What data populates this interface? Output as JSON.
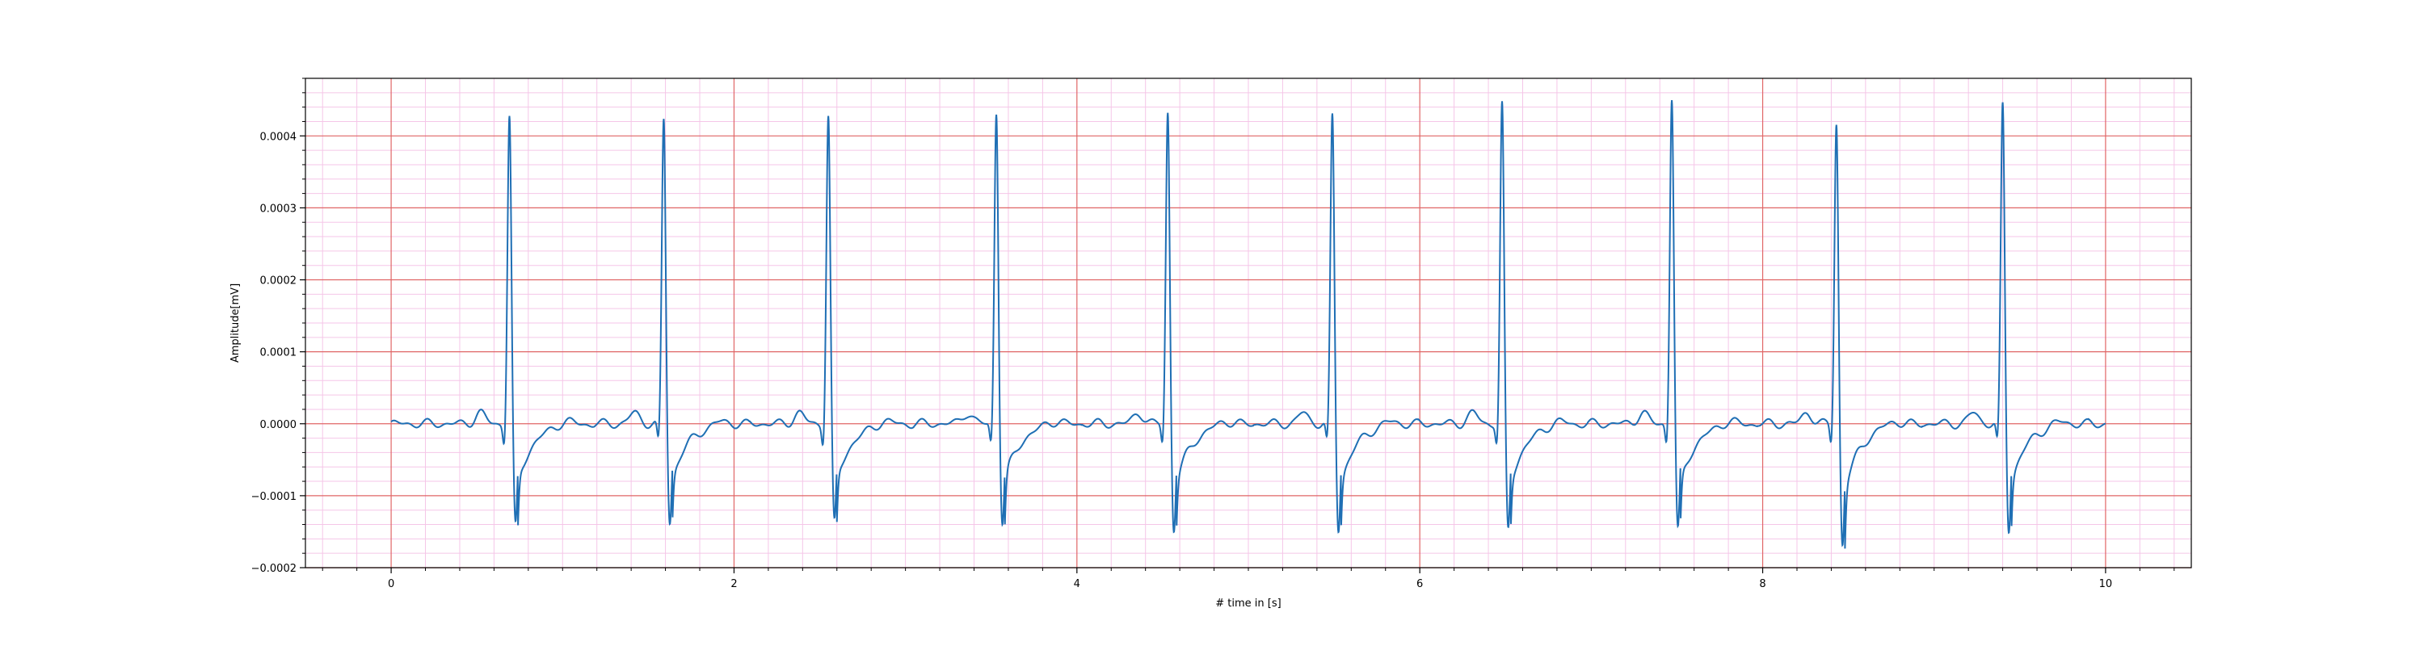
{
  "chart_data": {
    "type": "line",
    "title": "",
    "xlabel": "# time in [s]",
    "ylabel": "Amplitude[mV]",
    "xlim": [
      -0.5,
      10.5
    ],
    "ylim": [
      -0.0002,
      0.00048
    ],
    "x_ticks": [
      0,
      2,
      4,
      6,
      8,
      10
    ],
    "x_tick_labels": [
      "0",
      "2",
      "4",
      "6",
      "8",
      "10"
    ],
    "y_ticks": [
      -0.0002,
      -0.0001,
      0.0,
      0.0001,
      0.0002,
      0.0003,
      0.0004
    ],
    "y_tick_labels": [
      "−0.0002",
      "−0.0001",
      "0.0000",
      "0.0001",
      "0.0002",
      "0.0003",
      "0.0004"
    ],
    "grid": {
      "major": true,
      "minor": true,
      "major_color": "#e06666",
      "minor_color": "#f5c6e8"
    },
    "series": [
      {
        "color": "#1f6fb4",
        "x_range": [
          0,
          10
        ],
        "r_peaks": [
          {
            "t": 0.69,
            "peak": 0.00043,
            "trough": -0.000145
          },
          {
            "t": 1.59,
            "peak": 0.000425,
            "trough": -0.00014
          },
          {
            "t": 2.55,
            "peak": 0.00043,
            "trough": -0.00014
          },
          {
            "t": 3.53,
            "peak": 0.000435,
            "trough": -0.00014
          },
          {
            "t": 4.53,
            "peak": 0.000435,
            "trough": -0.00015
          },
          {
            "t": 5.49,
            "peak": 0.00043,
            "trough": -0.00015
          },
          {
            "t": 6.48,
            "peak": 0.000445,
            "trough": -0.00015
          },
          {
            "t": 7.47,
            "peak": 0.000455,
            "trough": -0.00015
          },
          {
            "t": 8.43,
            "peak": 0.00042,
            "trough": -0.00017
          },
          {
            "t": 9.4,
            "peak": 0.000445,
            "trough": -0.00015
          }
        ],
        "baseline": 0.0,
        "t_wave_amplitude": 2e-05,
        "p_wave_amplitude": 1.5e-05
      }
    ]
  }
}
